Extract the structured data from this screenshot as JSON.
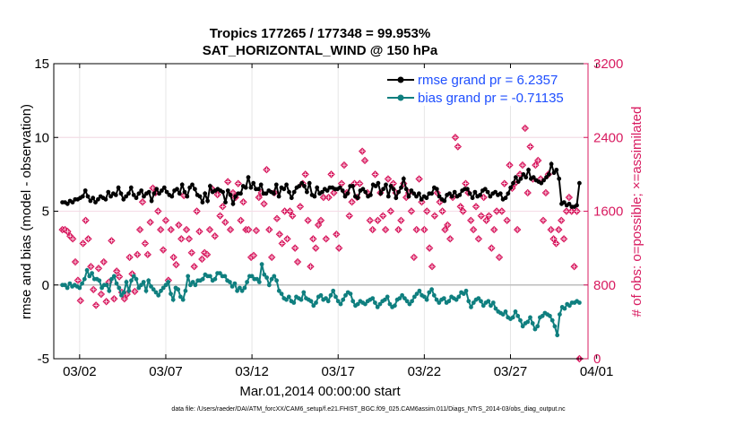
{
  "chart_data": {
    "type": "line",
    "title": "Tropics 177265 / 177348 = 99.953%",
    "subtitle": "SAT_HORIZONTAL_WIND @ 150 hPa",
    "xlabel": "Mar.01,2014 00:00:00 start",
    "ylabel": "rmse and bias (model - observation)",
    "y2label": "# of obs: o=possible; ×=assimilated",
    "footnote": "data file: /Users/raeder/DAI/ATM_forcXX/CAM6_setup/f.e21.FHIST_BGC.f09_025.CAM6assim.011/Diags_NTrS_2014-03/obs_diag_output.nc",
    "xlim": [
      0.5,
      31.5
    ],
    "ylim": [
      -5,
      15
    ],
    "y2lim": [
      0,
      3200
    ],
    "x_tick_values": [
      2,
      7,
      12,
      17,
      22,
      27,
      32
    ],
    "x_tick_labels": [
      "03/02",
      "03/07",
      "03/12",
      "03/17",
      "03/22",
      "03/27",
      "04/01"
    ],
    "y_ticks": [
      "-5",
      "0",
      "5",
      "10",
      "15"
    ],
    "y_tick_values": [
      -5,
      0,
      5,
      10,
      15
    ],
    "y2_ticks": [
      "0",
      "800",
      "1600",
      "2400",
      "3200"
    ],
    "y2_tick_values": [
      0,
      800,
      1600,
      2400,
      3200
    ],
    "legend_position": "top-right",
    "colors": {
      "rmse": "#000000",
      "bias": "#0f7f7f",
      "obs": "#d81b60",
      "axis_right": "#d81b60",
      "legend_text": "#1f4fff",
      "zero_line": "#bdbdbd"
    },
    "series": [
      {
        "name": "rmse grand pr = 6.2357",
        "values": [
          5.6,
          5.6,
          5.5,
          5.7,
          5.6,
          5.8,
          5.8,
          5.9,
          6.0,
          6.4,
          6.0,
          5.7,
          5.9,
          5.6,
          5.8,
          6.0,
          5.9,
          5.8,
          6.3,
          6.0,
          6.2,
          6.1,
          6.6,
          6.2,
          5.8,
          6.0,
          6.2,
          6.6,
          6.1,
          5.9,
          6.2,
          6.4,
          6.0,
          6.2,
          6.3,
          5.7,
          6.2,
          6.5,
          6.2,
          6.4,
          6.6,
          6.3,
          6.1,
          6.0,
          6.4,
          6.5,
          6.2,
          6.8,
          6.3,
          6.0,
          6.6,
          6.8,
          6.5,
          6.1,
          6.0,
          5.6,
          6.2,
          5.7,
          6.7,
          6.3,
          6.4,
          6.5,
          6.4,
          6.3,
          5.6,
          6.4,
          6.1,
          5.5,
          6.0,
          6.2,
          6.2,
          6.7,
          6.6,
          7.3,
          6.6,
          6.9,
          6.5,
          6.5,
          6.8,
          6.2,
          6.2,
          6.4,
          6.3,
          6.2,
          6.8,
          6.0,
          6.6,
          6.5,
          6.8,
          6.3,
          5.9,
          6.3,
          6.6,
          6.7,
          6.9,
          6.7,
          6.3,
          6.9,
          6.1,
          6.0,
          6.6,
          6.2,
          6.3,
          6.5,
          6.4,
          6.6,
          6.6,
          6.5,
          6.5,
          6.6,
          6.4,
          6.0,
          6.2,
          6.7,
          6.7,
          6.0,
          5.9,
          6.4,
          6.5,
          6.3,
          6.0,
          6.1,
          6.8,
          6.7,
          6.9,
          6.2,
          6.5,
          6.8,
          6.0,
          6.7,
          6.5,
          5.9,
          6.3,
          6.6,
          7.2,
          6.5,
          6.0,
          6.4,
          6.2,
          6.0,
          6.2,
          5.8,
          6.0,
          5.9,
          6.2,
          6.2,
          6.6,
          6.5,
          6.0,
          5.8,
          5.7,
          6.1,
          6.2,
          6.0,
          6.3,
          6.0,
          6.1,
          6.4,
          6.5,
          6.5,
          6.2,
          5.9,
          6.3,
          6.0,
          6.1,
          6.4,
          6.5,
          6.3,
          6.0,
          6.2,
          6.3,
          6.1,
          6.2,
          5.8,
          5.9,
          6.2,
          6.6,
          6.9,
          7.3,
          7.0,
          7.2,
          7.5,
          7.3,
          7.8,
          7.2,
          7.3,
          7.1,
          7.0,
          6.9,
          7.1,
          7.3,
          7.5,
          8.2,
          7.6,
          7.8,
          7.2,
          5.5,
          5.6,
          5.4,
          5.5,
          5.3,
          5.3,
          5.4,
          6.9
        ]
      },
      {
        "name": "bias grand pr = -0.71135",
        "values": [
          0.0,
          0.0,
          -0.2,
          0.1,
          -0.1,
          0.0,
          -0.1,
          -0.2,
          0.1,
          0.4,
          1.0,
          0.6,
          0.8,
          0.4,
          0.4,
          0.3,
          -0.2,
          0.0,
          0.0,
          -0.4,
          0.4,
          0.6,
          0.1,
          -0.2,
          -0.7,
          -0.5,
          0.2,
          -0.4,
          0.3,
          0.6,
          0.4,
          -0.2,
          0.0,
          0.2,
          -0.4,
          0.3,
          -0.1,
          -0.3,
          -0.5,
          -0.7,
          -0.4,
          -0.2,
          0.0,
          0.2,
          -0.6,
          -1.0,
          -0.2,
          -0.3,
          -0.8,
          -1.0,
          -0.4,
          0.6,
          0.0,
          0.2,
          0.0,
          0.3,
          0.3,
          0.4,
          0.7,
          0.6,
          0.6,
          0.3,
          0.4,
          0.8,
          0.8,
          0.6,
          0.6,
          0.3,
          0.2,
          -0.1,
          0.1,
          -0.4,
          -0.2,
          -0.4,
          -0.2,
          0.2,
          0.6,
          0.6,
          0.4,
          0.4,
          0.2,
          1.4,
          0.7,
          0.5,
          0.0,
          0.4,
          0.6,
          0.3,
          -0.4,
          -0.6,
          -0.9,
          -1.0,
          -0.8,
          -1.1,
          -1.2,
          -0.8,
          -0.9,
          -1.0,
          -0.5,
          -0.9,
          -1.0,
          -1.1,
          -1.4,
          -1.2,
          -0.8,
          -0.7,
          -1.0,
          -0.9,
          -1.1,
          -0.7,
          -0.4,
          -0.8,
          -1.1,
          -1.3,
          -1.0,
          -0.7,
          -0.5,
          -0.6,
          -1.1,
          -1.4,
          -1.3,
          -1.1,
          -1.2,
          -1.3,
          -1.1,
          -1.0,
          -0.9,
          -1.2,
          -1.5,
          -1.3,
          -1.1,
          -1.0,
          -0.8,
          -1.3,
          -1.5,
          -1.4,
          -1.0,
          -0.9,
          -0.7,
          -0.9,
          -1.1,
          -1.3,
          -1.1,
          -0.8,
          -0.6,
          -0.4,
          -0.7,
          -0.8,
          -1.0,
          -0.5,
          -0.3,
          -0.7,
          -1.0,
          -1.2,
          -1.0,
          -0.9,
          -1.2,
          -1.1,
          -0.8,
          -0.9,
          -1.0,
          -0.8,
          -0.5,
          -0.6,
          -0.4,
          -1.1,
          -1.5,
          -1.2,
          -1.0,
          -0.9,
          -1.1,
          -1.4,
          -1.2,
          -1.1,
          -1.4,
          -1.2,
          -1.6,
          -1.8,
          -1.9,
          -2.0,
          -1.8,
          -2.2,
          -2.3,
          -2.2,
          -1.8,
          -2.1,
          -2.4,
          -2.8,
          -2.6,
          -2.5,
          -2.2,
          -2.6,
          -3.0,
          -2.8,
          -2.2,
          -2.1,
          -1.9,
          -2.0,
          -2.1,
          -2.4,
          -2.8,
          -3.4,
          -2.0,
          -1.5,
          -1.6,
          -1.3,
          -1.4,
          -1.2,
          -1.2,
          -1.1,
          -1.2
        ]
      }
    ],
    "obs_counts": [
      1400,
      1400,
      1380,
      1330,
      1300,
      1050,
      850,
      630,
      1250,
      1500,
      1300,
      1000,
      750,
      580,
      980,
      700,
      1050,
      620,
      830,
      1280,
      650,
      950,
      890,
      720,
      650,
      700,
      1100,
      920,
      730,
      1130,
      1400,
      1700,
      1250,
      1130,
      1480,
      1850,
      1800,
      1600,
      1400,
      1180,
      1500,
      850,
      1400,
      1100,
      1020,
      1450,
      1300,
      1770,
      1400,
      1300,
      1150,
      1000,
      1600,
      1380,
      1080,
      1150,
      1130,
      1400,
      1840,
      1330,
      1780,
      1550,
      1650,
      1480,
      1920,
      1400,
      1800,
      1750,
      1900,
      1500,
      1700,
      1400,
      1400,
      1100,
      1120,
      1390,
      1750,
      1800,
      1680,
      2050,
      1400,
      1100,
      1800,
      1520,
      1350,
      1250,
      1600,
      1300,
      1600,
      1550,
      1200,
      1050,
      1650,
      1900,
      2000,
      1500,
      1000,
      1300,
      1200,
      1450,
      1500,
      1750,
      1300,
      1750,
      2000,
      1800,
      1350,
      1200,
      1900,
      2100,
      1800,
      1550,
      1700,
      1900,
      1750,
      1900,
      2250,
      2150,
      1800,
      1500,
      1400,
      2000,
      1500,
      1800,
      1550,
      1400,
      1950,
      1600,
      1900,
      1800,
      1400,
      1500,
      1900,
      1750,
      1800,
      1600,
      1100,
      1400,
      1950,
      1700,
      1400,
      1600,
      1200,
      1000,
      1550,
      1800,
      1700,
      1600,
      1400,
      1450,
      1300,
      1750,
      2400,
      2300,
      1650,
      1600,
      1900,
      1800,
      1500,
      1400,
      1650,
      1300,
      1550,
      1750,
      1500,
      1550,
      1200,
      1400,
      1600,
      1100,
      1600,
      1900,
      1500,
      2100,
      1850,
      1900,
      1400,
      2000,
      2100,
      2500,
      1800,
      2300,
      1950,
      2100,
      2150,
      1950,
      1500,
      1800,
      2000,
      1400,
      1300,
      1250,
      1400,
      1500,
      1300,
      1600,
      1750,
      1600,
      1000,
      1600,
      0
    ]
  }
}
